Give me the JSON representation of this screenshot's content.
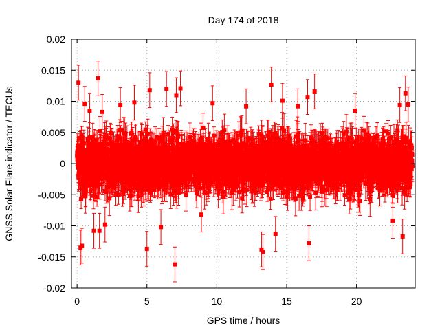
{
  "chart_data": {
    "type": "scatter",
    "title": "Day 174 of 2018",
    "xlabel": "GPS time / hours",
    "ylabel": "GNSS Solar Flare indicator / TECUs",
    "xlim": [
      -0.4,
      24.2
    ],
    "ylim": [
      -0.02,
      0.02
    ],
    "grid": true,
    "series_color": "#ff0000",
    "x_ticks": [
      {
        "value": 0,
        "label": "0"
      },
      {
        "value": 5,
        "label": "5"
      },
      {
        "value": 10,
        "label": "10"
      },
      {
        "value": 15,
        "label": "15"
      },
      {
        "value": 20,
        "label": "20"
      }
    ],
    "y_ticks": [
      {
        "value": 0.02,
        "label": "0.02"
      },
      {
        "value": 0.015,
        "label": "0.015"
      },
      {
        "value": 0.01,
        "label": "0.01"
      },
      {
        "value": 0.005,
        "label": "0.005"
      },
      {
        "value": 0,
        "label": "0"
      },
      {
        "value": -0.005,
        "label": "-0.005"
      },
      {
        "value": -0.01,
        "label": "-0.01"
      },
      {
        "value": -0.015,
        "label": "-0.015"
      },
      {
        "value": -0.02,
        "label": "-0.02"
      }
    ],
    "series": [
      {
        "name": "solar flare indicator",
        "samples_per_hour": 120,
        "x_start": 0,
        "x_end": 24,
        "typical_spread": 0.004,
        "typical_error": 0.002,
        "outliers": [
          {
            "x": 0.1,
            "y": 0.013
          },
          {
            "x": 0.25,
            "y": -0.0135
          },
          {
            "x": 0.35,
            "y": -0.0132
          },
          {
            "x": 0.55,
            "y": 0.0096
          },
          {
            "x": 0.9,
            "y": 0.0085
          },
          {
            "x": 1.2,
            "y": -0.0108
          },
          {
            "x": 1.5,
            "y": 0.0137
          },
          {
            "x": 1.6,
            "y": -0.0108
          },
          {
            "x": 1.8,
            "y": 0.0083
          },
          {
            "x": 2.0,
            "y": -0.0098
          },
          {
            "x": 3.1,
            "y": 0.0094
          },
          {
            "x": 4.1,
            "y": 0.0098
          },
          {
            "x": 5.0,
            "y": -0.0137
          },
          {
            "x": 5.2,
            "y": 0.0118
          },
          {
            "x": 6.0,
            "y": -0.0102
          },
          {
            "x": 6.4,
            "y": 0.012
          },
          {
            "x": 7.0,
            "y": -0.0162
          },
          {
            "x": 7.1,
            "y": 0.011
          },
          {
            "x": 7.4,
            "y": 0.0121
          },
          {
            "x": 8.9,
            "y": -0.0082
          },
          {
            "x": 9.7,
            "y": 0.0097
          },
          {
            "x": 12.1,
            "y": 0.0092
          },
          {
            "x": 13.2,
            "y": -0.0138
          },
          {
            "x": 13.3,
            "y": -0.0142
          },
          {
            "x": 13.9,
            "y": 0.0127
          },
          {
            "x": 14.2,
            "y": -0.0113
          },
          {
            "x": 14.7,
            "y": 0.0101
          },
          {
            "x": 15.8,
            "y": 0.0092
          },
          {
            "x": 16.5,
            "y": 0.0107
          },
          {
            "x": 16.6,
            "y": -0.0128
          },
          {
            "x": 17.0,
            "y": 0.0116
          },
          {
            "x": 19.9,
            "y": 0.0085
          },
          {
            "x": 22.6,
            "y": -0.0092
          },
          {
            "x": 23.1,
            "y": 0.0094
          },
          {
            "x": 23.3,
            "y": -0.0117
          },
          {
            "x": 23.5,
            "y": 0.0113
          },
          {
            "x": 23.7,
            "y": 0.0095
          }
        ]
      }
    ]
  }
}
